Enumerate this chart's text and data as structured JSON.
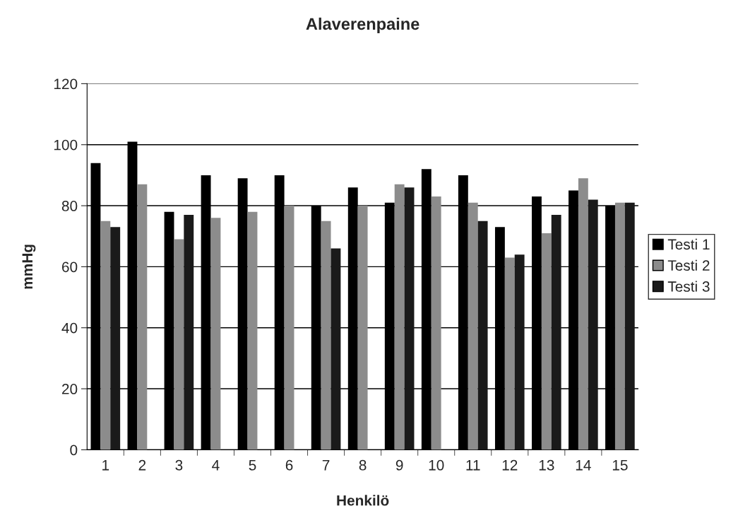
{
  "chart_data": {
    "type": "bar",
    "title": "Alaverenpaine",
    "xlabel": "Henkilö",
    "ylabel": "mmHg",
    "categories": [
      "1",
      "2",
      "3",
      "4",
      "5",
      "6",
      "7",
      "8",
      "9",
      "10",
      "11",
      "12",
      "13",
      "14",
      "15"
    ],
    "series": [
      {
        "name": "Testi 1",
        "color": "#000000",
        "values": [
          94,
          101,
          78,
          90,
          89,
          90,
          80,
          86,
          81,
          92,
          90,
          73,
          83,
          85,
          80
        ]
      },
      {
        "name": "Testi 2",
        "color": "#8c8c8c",
        "values": [
          75,
          87,
          69,
          76,
          78,
          80,
          75,
          80,
          87,
          83,
          81,
          63,
          71,
          89,
          81
        ]
      },
      {
        "name": "Testi 3",
        "color": "#1a1a1a",
        "values": [
          73,
          null,
          77,
          null,
          null,
          null,
          66,
          null,
          86,
          null,
          75,
          64,
          77,
          82,
          81
        ]
      }
    ],
    "ylim": [
      0,
      120
    ],
    "yticks": [
      0,
      20,
      40,
      60,
      80,
      100,
      120
    ],
    "grid": "y",
    "legend": "right"
  }
}
